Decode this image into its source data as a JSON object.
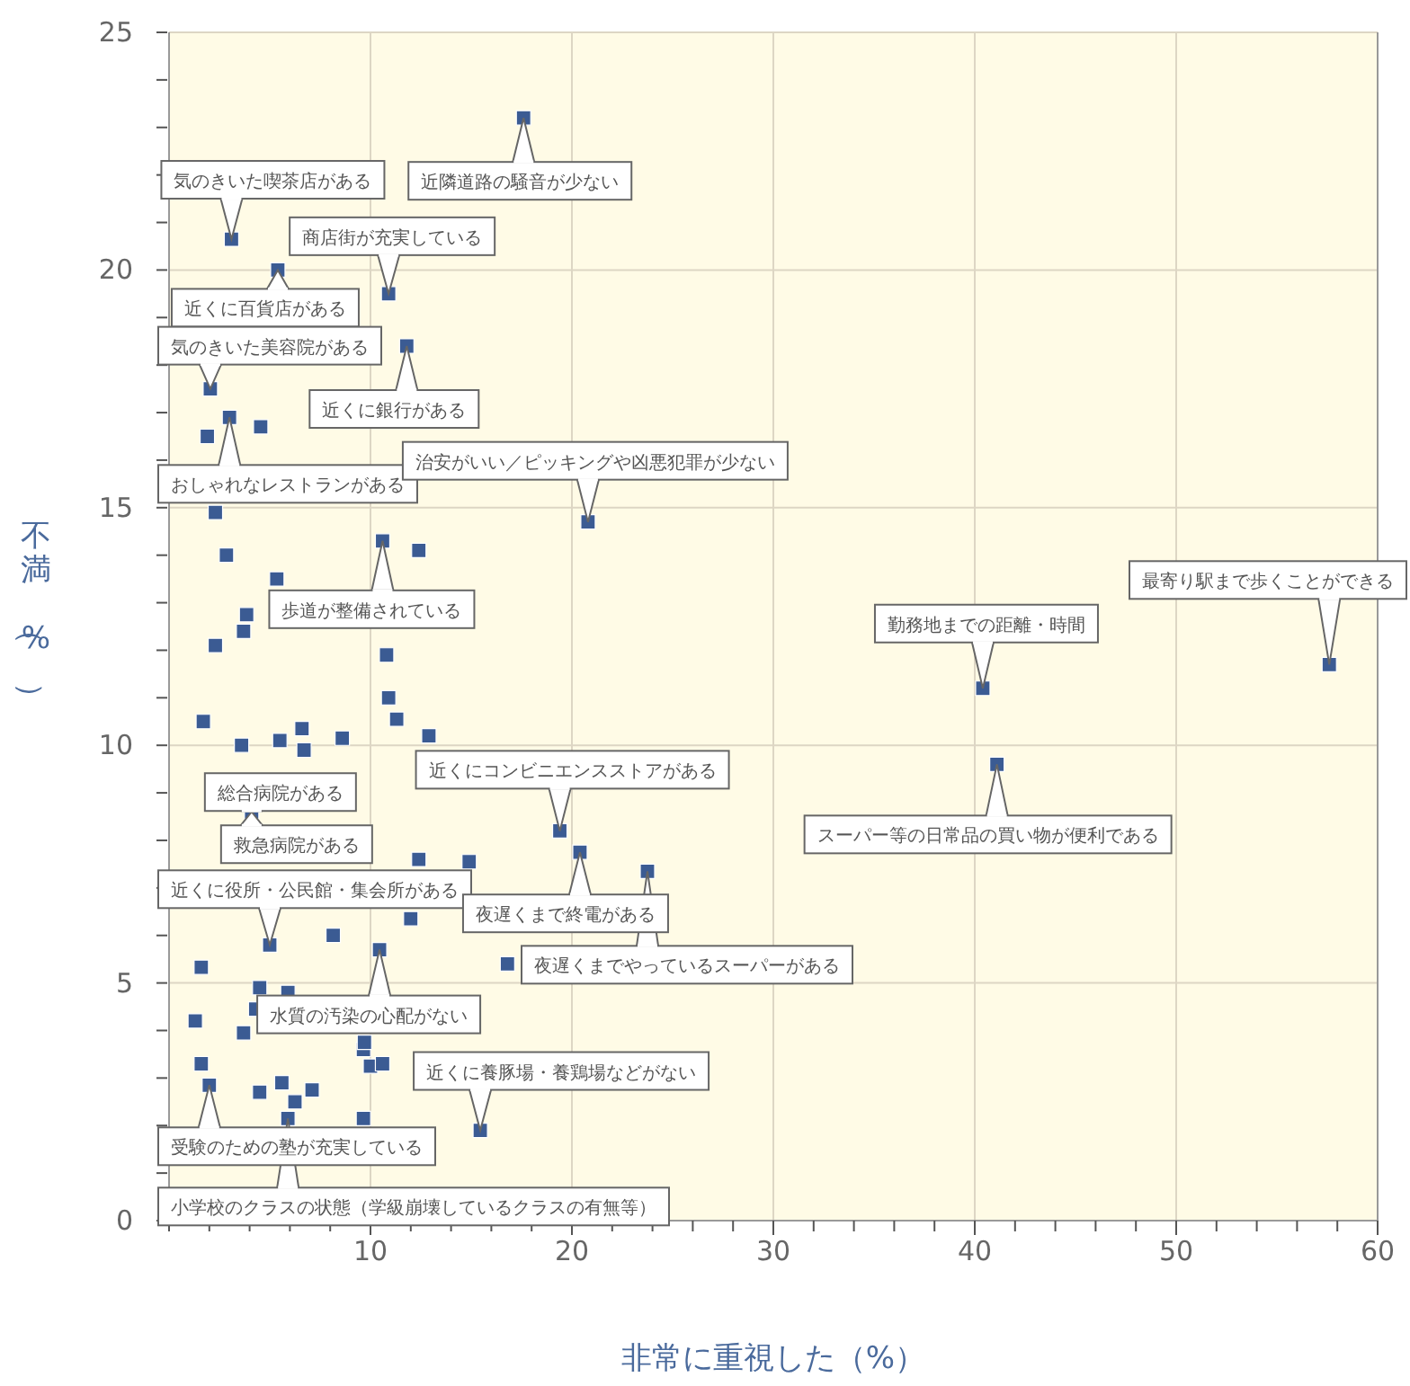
{
  "chart_data": {
    "type": "scatter",
    "xlabel": "非常に重視した（%）",
    "ylabel": "不満（%）",
    "xlim": [
      0,
      60
    ],
    "ylim": [
      0,
      25
    ],
    "xticks": [
      {
        "value": 0,
        "label": null
      },
      {
        "value": 2,
        "label": null
      },
      {
        "value": 4,
        "label": null
      },
      {
        "value": 6,
        "label": null
      },
      {
        "value": 8,
        "label": null
      },
      10,
      {
        "value": 12,
        "label": null
      },
      {
        "value": 14,
        "label": null
      },
      {
        "value": 16,
        "label": null
      },
      {
        "value": 18,
        "label": null
      },
      20,
      {
        "value": 22,
        "label": null
      },
      {
        "value": 24,
        "label": null
      },
      {
        "value": 26,
        "label": null
      },
      {
        "value": 28,
        "label": null
      },
      30,
      {
        "value": 32,
        "label": null
      },
      {
        "value": 34,
        "label": null
      },
      {
        "value": 36,
        "label": null
      },
      {
        "value": 38,
        "label": null
      },
      40,
      {
        "value": 42,
        "label": null
      },
      {
        "value": 44,
        "label": null
      },
      {
        "value": 46,
        "label": null
      },
      {
        "value": 48,
        "label": null
      },
      50,
      {
        "value": 52,
        "label": null
      },
      {
        "value": 54,
        "label": null
      },
      {
        "value": 56,
        "label": null
      },
      {
        "value": 58,
        "label": null
      },
      60
    ],
    "yticks": [
      0,
      {
        "value": 1,
        "label": null
      },
      {
        "value": 2,
        "label": null
      },
      {
        "value": 3,
        "label": null
      },
      {
        "value": 4,
        "label": null
      },
      5,
      {
        "value": 6,
        "label": null
      },
      {
        "value": 7,
        "label": null
      },
      {
        "value": 8,
        "label": null
      },
      {
        "value": 9,
        "label": null
      },
      10,
      {
        "value": 11,
        "label": null
      },
      {
        "value": 12,
        "label": null
      },
      {
        "value": 13,
        "label": null
      },
      {
        "value": 14,
        "label": null
      },
      15,
      {
        "value": 16,
        "label": null
      },
      {
        "value": 17,
        "label": null
      },
      {
        "value": 18,
        "label": null
      },
      {
        "value": 19,
        "label": null
      },
      20,
      {
        "value": 21,
        "label": null
      },
      {
        "value": 22,
        "label": null
      },
      {
        "value": 23,
        "label": null
      },
      {
        "value": 24,
        "label": null
      },
      25
    ],
    "grid": true,
    "marker": "square",
    "series": [
      {
        "color": "#3b5b93",
        "x": [
          17.6,
          3.1,
          5.4,
          10.9,
          11.8,
          2.05,
          3.0,
          1.9,
          4.55,
          2.3,
          20.8,
          10.6,
          12.4,
          2.85,
          5.35,
          3.85,
          3.7,
          2.3,
          10.8,
          10.9,
          11.3,
          1.7,
          6.6,
          5.5,
          3.6,
          6.7,
          8.6,
          12.9,
          19.4,
          20.4,
          23.75,
          12.4,
          14.9,
          12.0,
          16.8,
          10.45,
          15.45,
          4.1,
          5.0,
          8.15,
          1.6,
          4.5,
          5.9,
          4.3,
          1.3,
          3.7,
          1.6,
          2.0,
          4.5,
          5.6,
          7.1,
          6.25,
          5.9,
          9.65,
          9.65,
          9.7,
          10.0,
          10.6,
          40.4,
          41.1,
          57.6
        ],
        "values": [
          23.2,
          20.65,
          20.0,
          19.5,
          18.4,
          17.5,
          16.9,
          16.5,
          16.7,
          14.9,
          14.7,
          14.3,
          14.1,
          14.0,
          13.5,
          12.75,
          12.4,
          12.1,
          11.9,
          11.0,
          10.55,
          10.5,
          10.35,
          10.1,
          10.0,
          9.9,
          10.15,
          10.2,
          8.2,
          7.75,
          7.35,
          7.6,
          7.55,
          6.35,
          5.4,
          5.7,
          1.9,
          8.6,
          5.8,
          6.0,
          5.33,
          4.9,
          4.8,
          4.45,
          4.2,
          3.95,
          3.3,
          2.85,
          2.7,
          2.9,
          2.75,
          2.5,
          2.15,
          2.15,
          3.6,
          3.75,
          3.25,
          3.3,
          11.2,
          9.6,
          11.7
        ]
      }
    ],
    "annotations": [
      {
        "text": "気のきいた喫茶店がある",
        "x": 3.1,
        "y": 20.65
      },
      {
        "text": "近隣道路の騒音が少ない",
        "x": 17.6,
        "y": 23.2
      },
      {
        "text": "商店街が充実している",
        "x": 10.9,
        "y": 19.5
      },
      {
        "text": "近くに百貨店がある",
        "x": 5.4,
        "y": 20.0
      },
      {
        "text": "気のきいた美容院がある",
        "x": 2.05,
        "y": 17.5
      },
      {
        "text": "近くに銀行がある",
        "x": 11.8,
        "y": 18.4
      },
      {
        "text": "おしゃれなレストランがある",
        "x": 3.0,
        "y": 16.9
      },
      {
        "text": "治安がいい／ピッキングや凶悪犯罪が少ない",
        "x": 20.8,
        "y": 14.7
      },
      {
        "text": "歩道が整備されている",
        "x": 10.6,
        "y": 14.3
      },
      {
        "text": "総合病院がある",
        "x": 4.1,
        "y": 8.6
      },
      {
        "text": "救急病院がある",
        "x": 4.1,
        "y": 8.6
      },
      {
        "text": "近くに役所・公民館・集会所がある",
        "x": 5.0,
        "y": 5.8
      },
      {
        "text": "水質の汚染の心配がない",
        "x": 10.45,
        "y": 5.7
      },
      {
        "text": "受験のための塾が充実している",
        "x": 2.0,
        "y": 2.85
      },
      {
        "text": "小学校のクラスの状態（学級崩壊しているクラスの有無等）",
        "x": 5.9,
        "y": 2.15
      },
      {
        "text": "近くに養豚場・養鶏場などがない",
        "x": 15.45,
        "y": 1.9
      },
      {
        "text": "近くにコンビニエンスストアがある",
        "x": 19.4,
        "y": 8.2
      },
      {
        "text": "夜遅くまで終電がある",
        "x": 20.4,
        "y": 7.75
      },
      {
        "text": "夜遅くまでやっているスーパーがある",
        "x": 23.75,
        "y": 7.35
      },
      {
        "text": "勤務地までの距離・時間",
        "x": 40.4,
        "y": 11.2
      },
      {
        "text": "スーパー等の日常品の買い物が便利である",
        "x": 41.1,
        "y": 9.6
      },
      {
        "text": "最寄り駅まで歩くことができる",
        "x": 57.6,
        "y": 11.7
      }
    ]
  }
}
